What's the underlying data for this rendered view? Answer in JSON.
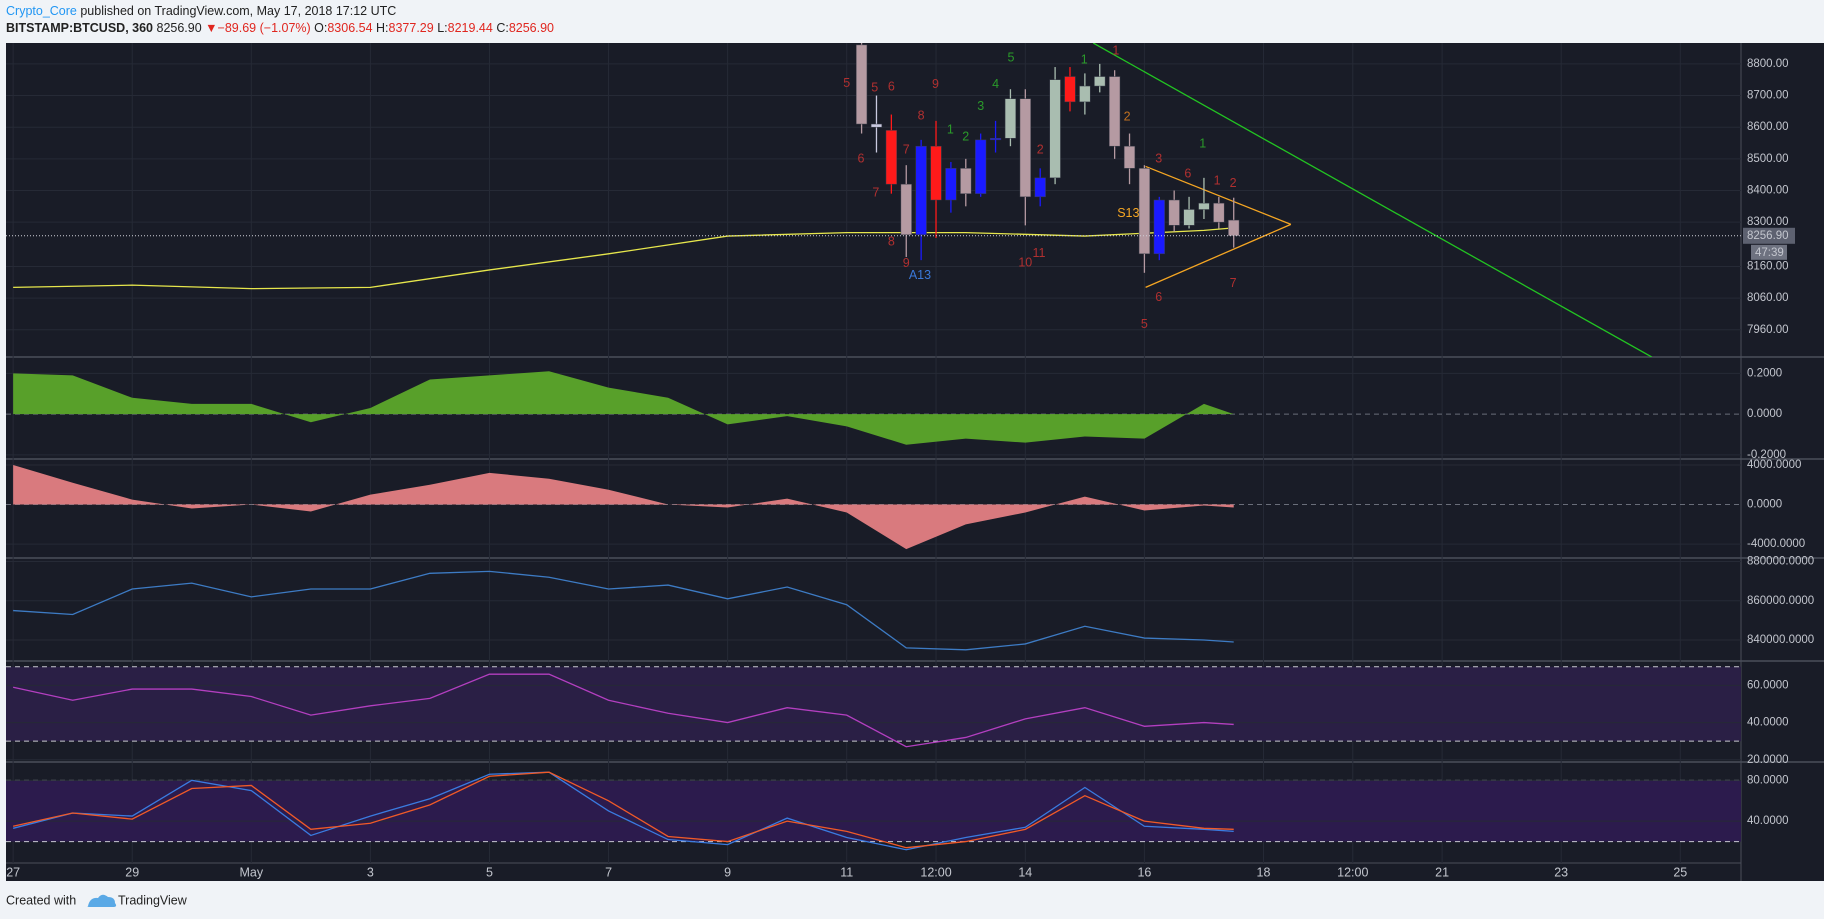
{
  "header": {
    "author": "Crypto_Core",
    "published": "published on TradingView.com, May 17, 2018 17:12 UTC",
    "symbol": "BITSTAMP:BTCUSD, 360",
    "last": "8256.90",
    "arrow": "▼",
    "change": "−89.69 (−1.07%)",
    "o_label": "O:",
    "open": "8306.54",
    "h_label": "H:",
    "high": "8377.29",
    "l_label": "L:",
    "low": "8219.44",
    "c_label": "C:",
    "close": "8256.90"
  },
  "footer": {
    "created": "Created with",
    "brand": "TradingView"
  },
  "chart_data": [
    {
      "type": "candlestick",
      "xlim": [
        -0.12,
        29.02
      ],
      "xticks": [
        {
          "value": 0,
          "label": "27"
        },
        {
          "value": 2,
          "label": "29"
        },
        {
          "value": 4,
          "label": "May"
        },
        {
          "value": 6,
          "label": "3"
        },
        {
          "value": 8,
          "label": "5"
        },
        {
          "value": 10,
          "label": "7"
        },
        {
          "value": 12,
          "label": "9"
        },
        {
          "value": 14,
          "label": "11"
        },
        {
          "value": 15.5,
          "label": "12:00"
        },
        {
          "value": 17,
          "label": "14"
        },
        {
          "value": 19,
          "label": "16"
        },
        {
          "value": 21,
          "label": "18"
        },
        {
          "value": 22.5,
          "label": "12:00"
        },
        {
          "value": 24,
          "label": "21"
        },
        {
          "value": 26,
          "label": "23"
        },
        {
          "value": 28,
          "label": "25"
        }
      ],
      "ylim": [
        7874,
        8866
      ],
      "yticks": [
        {
          "value": 8800,
          "label": "8800.00"
        },
        {
          "value": 8700,
          "label": "8700.00"
        },
        {
          "value": 8600,
          "label": "8600.00"
        },
        {
          "value": 8500,
          "label": "8500.00"
        },
        {
          "value": 8400,
          "label": "8400.00"
        },
        {
          "value": 8300,
          "label": "8300.00"
        },
        {
          "value": 8160,
          "label": "8160.00"
        },
        {
          "value": 8060,
          "label": "8060.00"
        },
        {
          "value": 7960,
          "label": "7960.00"
        }
      ],
      "grid": true,
      "x": [
        14.25,
        14.5,
        14.75,
        15,
        15.25,
        15.5,
        15.75,
        16,
        16.25,
        16.5,
        16.75,
        17,
        17.25,
        17.5,
        17.75,
        18,
        18.25,
        18.5,
        18.75,
        19,
        19.25,
        19.5,
        19.75,
        20,
        20.25,
        20.5
      ],
      "open": [
        8860,
        8610,
        8590,
        8420,
        8260,
        8540,
        8370,
        8470,
        8390,
        8560,
        8565,
        8690,
        8380,
        8440,
        8760,
        8680,
        8730,
        8760,
        8540,
        8470,
        8200,
        8370,
        8290,
        8340,
        8360,
        8306.54
      ],
      "high": [
        8870,
        8700,
        8640,
        8480,
        8560,
        8620,
        8490,
        8500,
        8580,
        8620,
        8720,
        8720,
        8470,
        8790,
        8790,
        8770,
        8800,
        8780,
        8580,
        8480,
        8380,
        8400,
        8380,
        8440,
        8380,
        8377.29
      ],
      "low": [
        8580,
        8520,
        8390,
        8190,
        8180,
        8250,
        8330,
        8350,
        8380,
        8520,
        8540,
        8290,
        8350,
        8420,
        8650,
        8640,
        8710,
        8500,
        8420,
        8140,
        8180,
        8270,
        8280,
        8310,
        8280,
        8219.44
      ],
      "close": [
        8610,
        8600,
        8420,
        8260,
        8540,
        8370,
        8470,
        8390,
        8560,
        8565,
        8690,
        8380,
        8440,
        8750,
        8680,
        8730,
        8760,
        8540,
        8470,
        8200,
        8370,
        8290,
        8340,
        8360,
        8300,
        8256.9
      ],
      "colors": [
        "#b59aa2",
        "#c9c9e0",
        "#ff1a1a",
        "#b59aa2",
        "#1a1aff",
        "#ff1a1a",
        "#1a1aff",
        "#b59aa2",
        "#1a1aff",
        "#1a1aff",
        "#a9bdb0",
        "#b59aa2",
        "#1a1aff",
        "#a9bdb0",
        "#ff1a1a",
        "#a9bdb0",
        "#a9bdb0",
        "#b59aa2",
        "#b59aa2",
        "#b59aa2",
        "#1a1aff",
        "#b59aa2",
        "#a9bdb0",
        "#a9bdb0",
        "#b59aa2",
        "#b59aa2"
      ],
      "overlays": [
        {
          "color": "#e6e64c",
          "x": [
            0,
            2,
            4,
            6,
            8,
            10,
            12,
            14,
            16,
            18,
            20,
            20.5
          ],
          "values": [
            8094,
            8101,
            8090,
            8094,
            8149,
            8200,
            8256,
            8267,
            8267,
            8256,
            8274,
            8282
          ]
        },
        {
          "color": "#22c422",
          "x": [
            18.14,
            27.52
          ],
          "values": [
            8866,
            7874
          ]
        },
        {
          "color": "#f5a623",
          "x": [
            19.02,
            21.46
          ],
          "values": [
            8476,
            8293
          ]
        },
        {
          "color": "#f5a623",
          "x": [
            19.02,
            21.46
          ],
          "values": [
            8094,
            8293
          ]
        }
      ],
      "last_price": {
        "value": 8256.9,
        "label": "8256.90"
      },
      "countdown": "47:39",
      "annotations": [
        {
          "text": "5",
          "x": 14.0,
          "y": 8737,
          "color": "#b03030"
        },
        {
          "text": "5",
          "x": 14.47,
          "y": 8723,
          "color": "#b03030"
        },
        {
          "text": "6",
          "x": 14.75,
          "y": 8726,
          "color": "#b03030"
        },
        {
          "text": "7",
          "x": 15.0,
          "y": 8528,
          "color": "#b03030"
        },
        {
          "text": "8",
          "x": 15.25,
          "y": 8635,
          "color": "#b03030"
        },
        {
          "text": "9",
          "x": 15.49,
          "y": 8734,
          "color": "#b03030"
        },
        {
          "text": "6",
          "x": 14.24,
          "y": 8499,
          "color": "#b03030"
        },
        {
          "text": "7",
          "x": 14.49,
          "y": 8392,
          "color": "#b03030"
        },
        {
          "text": "8",
          "x": 14.75,
          "y": 8237,
          "color": "#b03030"
        },
        {
          "text": "9",
          "x": 15.0,
          "y": 8168,
          "color": "#b03030"
        },
        {
          "text": "1",
          "x": 15.74,
          "y": 8590,
          "color": "#2a9a2a"
        },
        {
          "text": "2",
          "x": 16.0,
          "y": 8568,
          "color": "#2a9a2a"
        },
        {
          "text": "3",
          "x": 16.25,
          "y": 8664,
          "color": "#2a9a2a"
        },
        {
          "text": "4",
          "x": 16.5,
          "y": 8734,
          "color": "#2a9a2a"
        },
        {
          "text": "5",
          "x": 16.76,
          "y": 8818,
          "color": "#2a9a2a"
        },
        {
          "text": "1",
          "x": 17.99,
          "y": 8811,
          "color": "#2a9a2a"
        },
        {
          "text": "2",
          "x": 17.25,
          "y": 8528,
          "color": "#b03030"
        },
        {
          "text": "1",
          "x": 18.52,
          "y": 8840,
          "color": "#b03030"
        },
        {
          "text": "2",
          "x": 18.71,
          "y": 8631,
          "color": "#c07020"
        },
        {
          "text": "3",
          "x": 19.24,
          "y": 8499,
          "color": "#b03030"
        },
        {
          "text": "6",
          "x": 19.73,
          "y": 8451,
          "color": "#b03030"
        },
        {
          "text": "1",
          "x": 20.22,
          "y": 8429,
          "color": "#b03030"
        },
        {
          "text": "2",
          "x": 20.49,
          "y": 8421,
          "color": "#b03030"
        },
        {
          "text": "1",
          "x": 19.98,
          "y": 8546,
          "color": "#2a9a2a"
        },
        {
          "text": "A13",
          "x": 15.23,
          "y": 8131,
          "color": "#3a78d8"
        },
        {
          "text": "S13",
          "x": 18.73,
          "y": 8326,
          "color": "#f5a623"
        },
        {
          "text": "11",
          "x": 17.23,
          "y": 8201,
          "color": "#b03030"
        },
        {
          "text": "10",
          "x": 17.0,
          "y": 8171,
          "color": "#b03030"
        },
        {
          "text": "6",
          "x": 19.24,
          "y": 8061,
          "color": "#b03030"
        },
        {
          "text": "5",
          "x": 19.0,
          "y": 7976,
          "color": "#b03030"
        },
        {
          "text": "7",
          "x": 20.49,
          "y": 8105,
          "color": "#b03030"
        }
      ]
    },
    {
      "type": "area",
      "ylim": [
        -0.22,
        0.28
      ],
      "yticks": [
        {
          "value": 0.2,
          "label": "0.2000"
        },
        {
          "value": 0,
          "label": "0.0000"
        },
        {
          "value": -0.2,
          "label": "-0.2000"
        }
      ],
      "x": [
        0,
        1,
        2,
        3,
        4,
        5,
        6,
        7,
        8,
        9,
        10,
        11,
        12,
        13,
        14,
        15,
        16,
        17,
        18,
        19,
        20,
        20.5
      ],
      "series": [
        {
          "color": "#58a02a",
          "values": [
            0.2,
            0.19,
            0.08,
            0.05,
            0.05,
            -0.04,
            0.03,
            0.17,
            0.19,
            0.21,
            0.13,
            0.08,
            -0.05,
            -0.01,
            -0.06,
            -0.15,
            -0.12,
            -0.14,
            -0.11,
            -0.12,
            0.05,
            0.0
          ]
        }
      ]
    },
    {
      "type": "area",
      "ylim": [
        -5400,
        4600
      ],
      "yticks": [
        {
          "value": 4000,
          "label": "4000.0000"
        },
        {
          "value": 0,
          "label": "0.0000"
        },
        {
          "value": -4000,
          "label": "-4000.0000"
        }
      ],
      "x": [
        0,
        1,
        2,
        3,
        4,
        5,
        6,
        7,
        8,
        9,
        10,
        11,
        12,
        13,
        14,
        15,
        16,
        17,
        18,
        19,
        20,
        20.5
      ],
      "series": [
        {
          "color": "#d97a7e",
          "values": [
            4000,
            2200,
            500,
            -400,
            0,
            -700,
            1000,
            2000,
            3200,
            2600,
            1500,
            0,
            -300,
            600,
            -800,
            -4500,
            -2000,
            -800,
            800,
            -600,
            -100,
            -300
          ]
        }
      ]
    },
    {
      "type": "line",
      "ylim": [
        829300,
        881800
      ],
      "yticks": [
        {
          "value": 880000,
          "label": "880000.0000"
        },
        {
          "value": 860000,
          "label": "860000.0000"
        },
        {
          "value": 840000,
          "label": "840000.0000"
        }
      ],
      "x": [
        0,
        1,
        2,
        3,
        4,
        5,
        6,
        7,
        8,
        9,
        10,
        11,
        12,
        13,
        14,
        15,
        16,
        17,
        18,
        19,
        20,
        20.5
      ],
      "series": [
        {
          "color": "#3d7bc4",
          "values": [
            855000,
            853000,
            866000,
            869000,
            862000,
            866000,
            866000,
            874000,
            875000,
            872000,
            866000,
            868000,
            861000,
            867000,
            858000,
            836000,
            835000,
            838000,
            847000,
            841000,
            840000,
            839000
          ]
        }
      ]
    },
    {
      "type": "line",
      "ylim": [
        18.8,
        73.1
      ],
      "yticks": [
        {
          "value": 60,
          "label": "60.0000"
        },
        {
          "value": 40,
          "label": "40.0000"
        },
        {
          "value": 20,
          "label": "20.0000"
        }
      ],
      "bands": [
        30,
        70
      ],
      "band_color": "#2a1f45",
      "x": [
        0,
        1,
        2,
        3,
        4,
        5,
        6,
        7,
        8,
        9,
        10,
        11,
        12,
        13,
        14,
        15,
        16,
        17,
        18,
        19,
        20,
        20.5
      ],
      "series": [
        {
          "color": "#b33fc0",
          "values": [
            59,
            52,
            58,
            58,
            54,
            44,
            49,
            53,
            66,
            66,
            52,
            45,
            40,
            48,
            44,
            27,
            32,
            42,
            48,
            38,
            40,
            39
          ]
        }
      ]
    },
    {
      "type": "line",
      "ylim": [
        -1,
        98
      ],
      "yticks": [
        {
          "value": 80,
          "label": "80.0000"
        },
        {
          "value": 40,
          "label": "40.0000"
        }
      ],
      "bands": [
        20,
        80
      ],
      "band_color": "#2c1b4d",
      "x": [
        0,
        1,
        2,
        3,
        4,
        5,
        6,
        7,
        8,
        9,
        10,
        11,
        12,
        13,
        14,
        15,
        16,
        17,
        18,
        19,
        20,
        20.5
      ],
      "series": [
        {
          "color": "#3a7be0",
          "values": [
            33,
            48,
            45,
            80,
            70,
            26,
            45,
            62,
            86,
            88,
            50,
            22,
            17,
            43,
            24,
            12,
            24,
            34,
            73,
            35,
            32,
            30
          ]
        },
        {
          "color": "#f05a28",
          "values": [
            35,
            48,
            42,
            72,
            75,
            32,
            38,
            56,
            84,
            88,
            60,
            25,
            20,
            40,
            30,
            14,
            20,
            32,
            65,
            40,
            33,
            32
          ]
        }
      ]
    }
  ]
}
